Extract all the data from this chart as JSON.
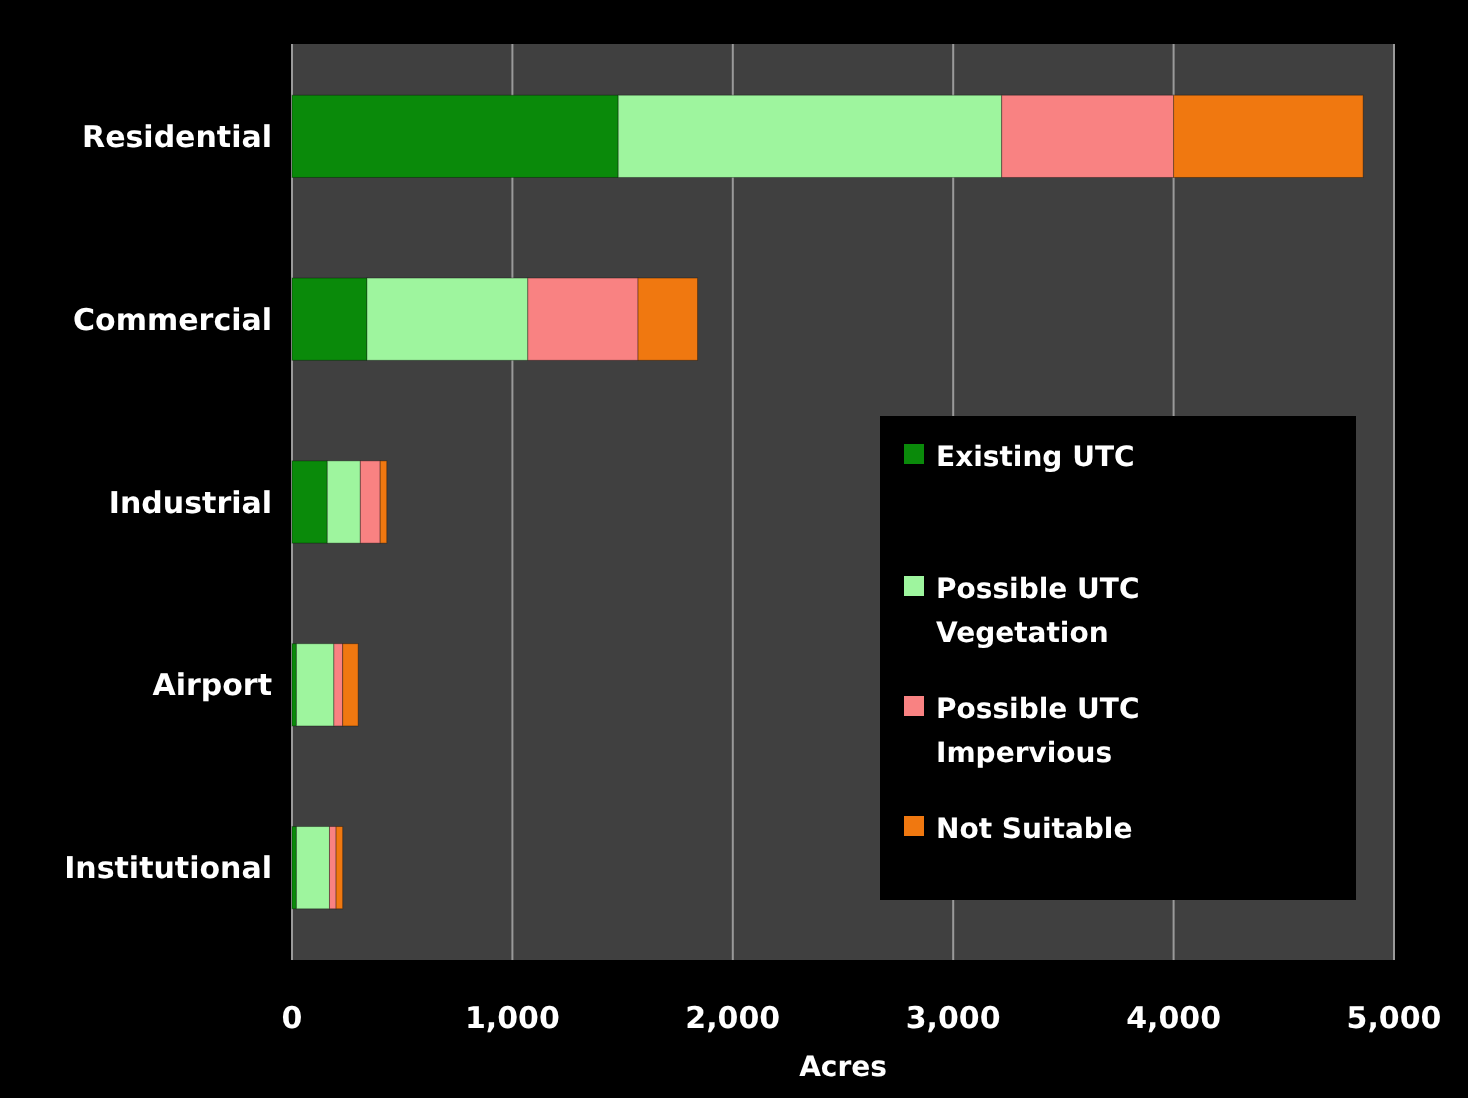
{
  "chart_data": {
    "type": "bar",
    "orientation": "horizontal",
    "stacked": true,
    "xlabel": "Acres",
    "categories": [
      "Residential",
      "Commercial",
      "Industrial",
      "Airport",
      "Institutional"
    ],
    "series": [
      {
        "name": "Existing UTC",
        "color": "#0a8a0a",
        "values": [
          1480,
          340,
          160,
          20,
          20
        ]
      },
      {
        "name": "Possible UTC Vegetation",
        "color": "#9ef59e",
        "values": [
          1740,
          730,
          150,
          170,
          150
        ]
      },
      {
        "name": "Possible UTC Impervious",
        "color": "#f98282",
        "values": [
          780,
          500,
          90,
          40,
          30
        ]
      },
      {
        "name": "Not Suitable",
        "color": "#f07810",
        "values": [
          860,
          270,
          30,
          70,
          30
        ]
      }
    ],
    "xlim": [
      0,
      5000
    ],
    "xticks": [
      0,
      {
        "value": 1000,
        "label": "1,000"
      },
      {
        "value": 2000,
        "label": "2,000"
      },
      {
        "value": 3000,
        "label": "3,000"
      },
      {
        "value": 4000,
        "label": "4,000"
      },
      {
        "value": 5000,
        "label": "5,000"
      }
    ],
    "grid": "x",
    "legend": "right"
  }
}
